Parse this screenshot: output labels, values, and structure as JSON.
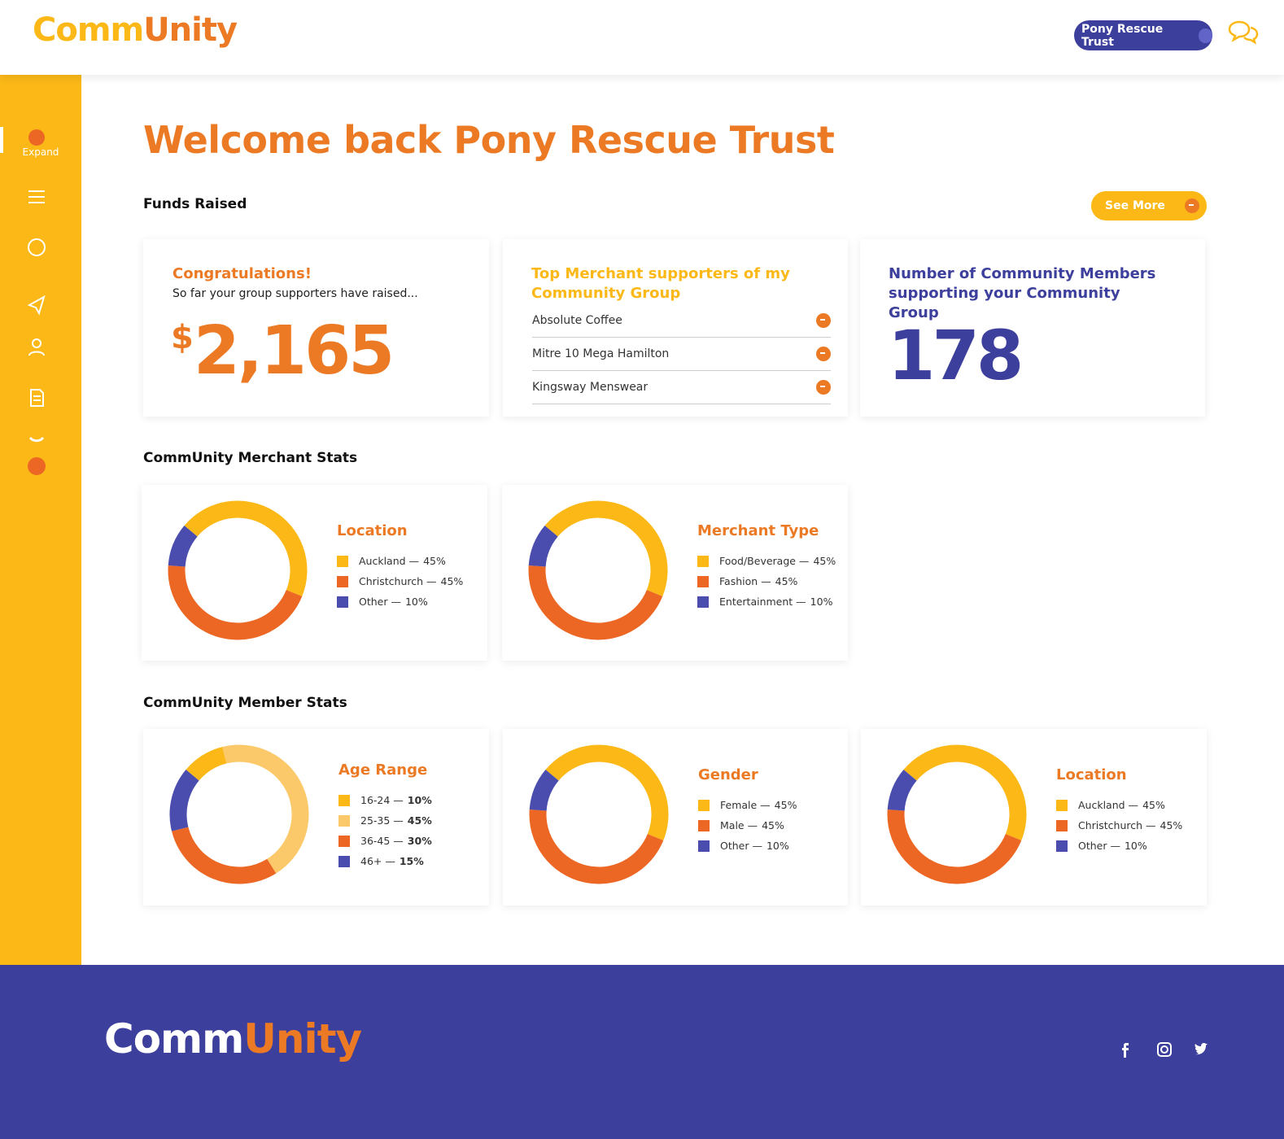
{
  "header": {
    "logo_first": "Comm",
    "logo_second": "Unity",
    "account": "Pony Rescue Trust"
  },
  "sidebar": {
    "expand": "Expand"
  },
  "main": {
    "title": "Welcome back Pony Rescue Trust",
    "funds_heading": "Funds Raised",
    "see_more": "See More",
    "funds_card": {
      "title": "Congratulations!",
      "subtitle": "So far your group supporters have raised...",
      "currency": "$",
      "amount": "2,165"
    },
    "merchants_card": {
      "title": "Top Merchant supporters of my Community Group",
      "items": [
        "Absolute Coffee",
        "Mitre 10 Mega Hamilton",
        "Kingsway Menswear"
      ]
    },
    "members_card": {
      "title": "Number of Community Members supporting your Community Group",
      "count": 178
    },
    "merchant_stats_heading": "CommUnity Merchant Stats",
    "member_stats_heading": "CommUnity Member Stats"
  },
  "chart_data": [
    {
      "type": "donut",
      "title": "Location",
      "categories": [
        "Auckland —",
        "Christchurch —",
        "Other —"
      ],
      "values": [
        45,
        45,
        10
      ],
      "value_labels": [
        "45%",
        "45%",
        "10%"
      ],
      "colors": [
        "#fbb817",
        "#ec6724",
        "#4a4cae"
      ]
    },
    {
      "type": "donut",
      "title": "Merchant Type",
      "categories": [
        "Food/Beverage —",
        "Fashion —",
        "Entertainment —"
      ],
      "values": [
        45,
        45,
        10
      ],
      "value_labels": [
        "45%",
        "45%",
        "10%"
      ],
      "colors": [
        "#fbb817",
        "#ec6724",
        "#4a4cae"
      ]
    },
    {
      "type": "donut",
      "title": "Age Range",
      "categories": [
        "16-24 —",
        "25-35 —",
        "36-45 —",
        "46+ —"
      ],
      "values": [
        10,
        45,
        30,
        15
      ],
      "value_labels": [
        "10%",
        "45%",
        "30%",
        "15%"
      ],
      "colors": [
        "#fbb817",
        "#fcc96a",
        "#ec6724",
        "#4a4cae"
      ],
      "value_weight": "bold"
    },
    {
      "type": "donut",
      "title": "Gender",
      "categories": [
        "Female —",
        "Male —",
        "Other —"
      ],
      "values": [
        45,
        45,
        10
      ],
      "value_labels": [
        "45%",
        "45%",
        "10%"
      ],
      "colors": [
        "#fbb817",
        "#ec6724",
        "#4a4cae"
      ]
    },
    {
      "type": "donut",
      "title": "Location",
      "categories": [
        "Auckland —",
        "Christchurch —",
        "Other —"
      ],
      "values": [
        45,
        45,
        10
      ],
      "value_labels": [
        "45%",
        "45%",
        "10%"
      ],
      "colors": [
        "#fbb817",
        "#ec6724",
        "#4a4cae"
      ]
    }
  ]
}
